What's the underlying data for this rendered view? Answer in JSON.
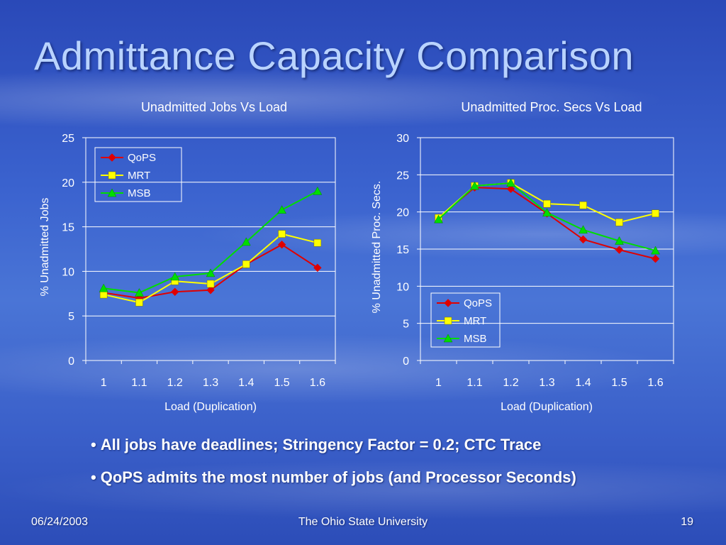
{
  "slide": {
    "title": "Admittance Capacity Comparison",
    "bullets": [
      "All jobs have deadlines; Stringency Factor = 0.2; CTC Trace",
      "QoPS admits the most number of jobs (and Processor Seconds)"
    ],
    "footer": {
      "date": "06/24/2003",
      "institution": "The Ohio State University",
      "page": "19"
    }
  },
  "chart_data": [
    {
      "type": "line",
      "title": "Unadmitted Jobs Vs Load",
      "xlabel": "Load (Duplication)",
      "ylabel": "% Unadmitted Jobs",
      "categories": [
        "1",
        "1.1",
        "1.2",
        "1.3",
        "1.4",
        "1.5",
        "1.6"
      ],
      "ylim": [
        0,
        25
      ],
      "yticks": [
        "0",
        "5",
        "10",
        "15",
        "20",
        "25"
      ],
      "grid": true,
      "legend": "top-left",
      "series": [
        {
          "name": "QoPS",
          "color": "#e00000",
          "marker": "diamond",
          "values": [
            7.6,
            7.0,
            7.7,
            7.9,
            10.8,
            13.0,
            10.4
          ]
        },
        {
          "name": "MRT",
          "color": "#ffff00",
          "marker": "square",
          "values": [
            7.4,
            6.5,
            8.9,
            8.6,
            10.8,
            14.2,
            13.2
          ]
        },
        {
          "name": "MSB",
          "color": "#00dd00",
          "marker": "triangle",
          "values": [
            8.1,
            7.6,
            9.4,
            9.8,
            13.3,
            16.9,
            19.0
          ]
        }
      ]
    },
    {
      "type": "line",
      "title": "Unadmitted Proc. Secs Vs Load",
      "xlabel": "Load (Duplication)",
      "ylabel": "% Unadmitted Proc. Secs.",
      "categories": [
        "1",
        "1.1",
        "1.2",
        "1.3",
        "1.4",
        "1.5",
        "1.6"
      ],
      "ylim": [
        0,
        30
      ],
      "yticks": [
        "0",
        "5",
        "10",
        "15",
        "20",
        "25",
        "30"
      ],
      "grid": true,
      "legend": "bottom-right",
      "series": [
        {
          "name": "QoPS",
          "color": "#e00000",
          "marker": "diamond",
          "values": [
            19.2,
            23.3,
            23.1,
            19.8,
            16.3,
            14.9,
            13.7
          ]
        },
        {
          "name": "MRT",
          "color": "#ffff00",
          "marker": "square",
          "values": [
            19.2,
            23.5,
            23.9,
            21.1,
            20.9,
            18.6,
            19.8
          ]
        },
        {
          "name": "MSB",
          "color": "#00dd00",
          "marker": "triangle",
          "values": [
            19.0,
            23.5,
            23.9,
            19.9,
            17.6,
            16.1,
            14.8
          ]
        }
      ]
    }
  ]
}
